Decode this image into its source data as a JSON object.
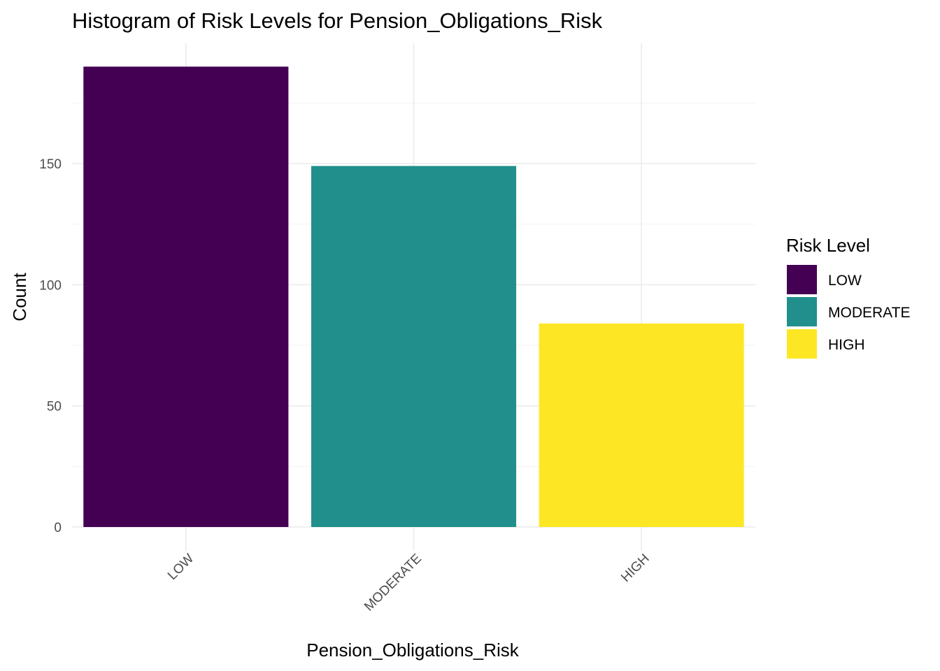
{
  "chart_data": {
    "type": "bar",
    "title": "Histogram of Risk Levels for Pension_Obligations_Risk",
    "xlabel": "Pension_Obligations_Risk",
    "ylabel": "Count",
    "categories": [
      "LOW",
      "MODERATE",
      "HIGH"
    ],
    "values": [
      190,
      149,
      84
    ],
    "colors": [
      "#440154",
      "#21908C",
      "#FDE725"
    ],
    "ylim": [
      0,
      200
    ],
    "yticks": [
      0,
      50,
      100,
      150
    ],
    "grid": true,
    "x_tick_rotation_deg": 45,
    "legend": {
      "title": "Risk Level",
      "placement": "right",
      "entries": [
        "LOW",
        "MODERATE",
        "HIGH"
      ]
    }
  }
}
